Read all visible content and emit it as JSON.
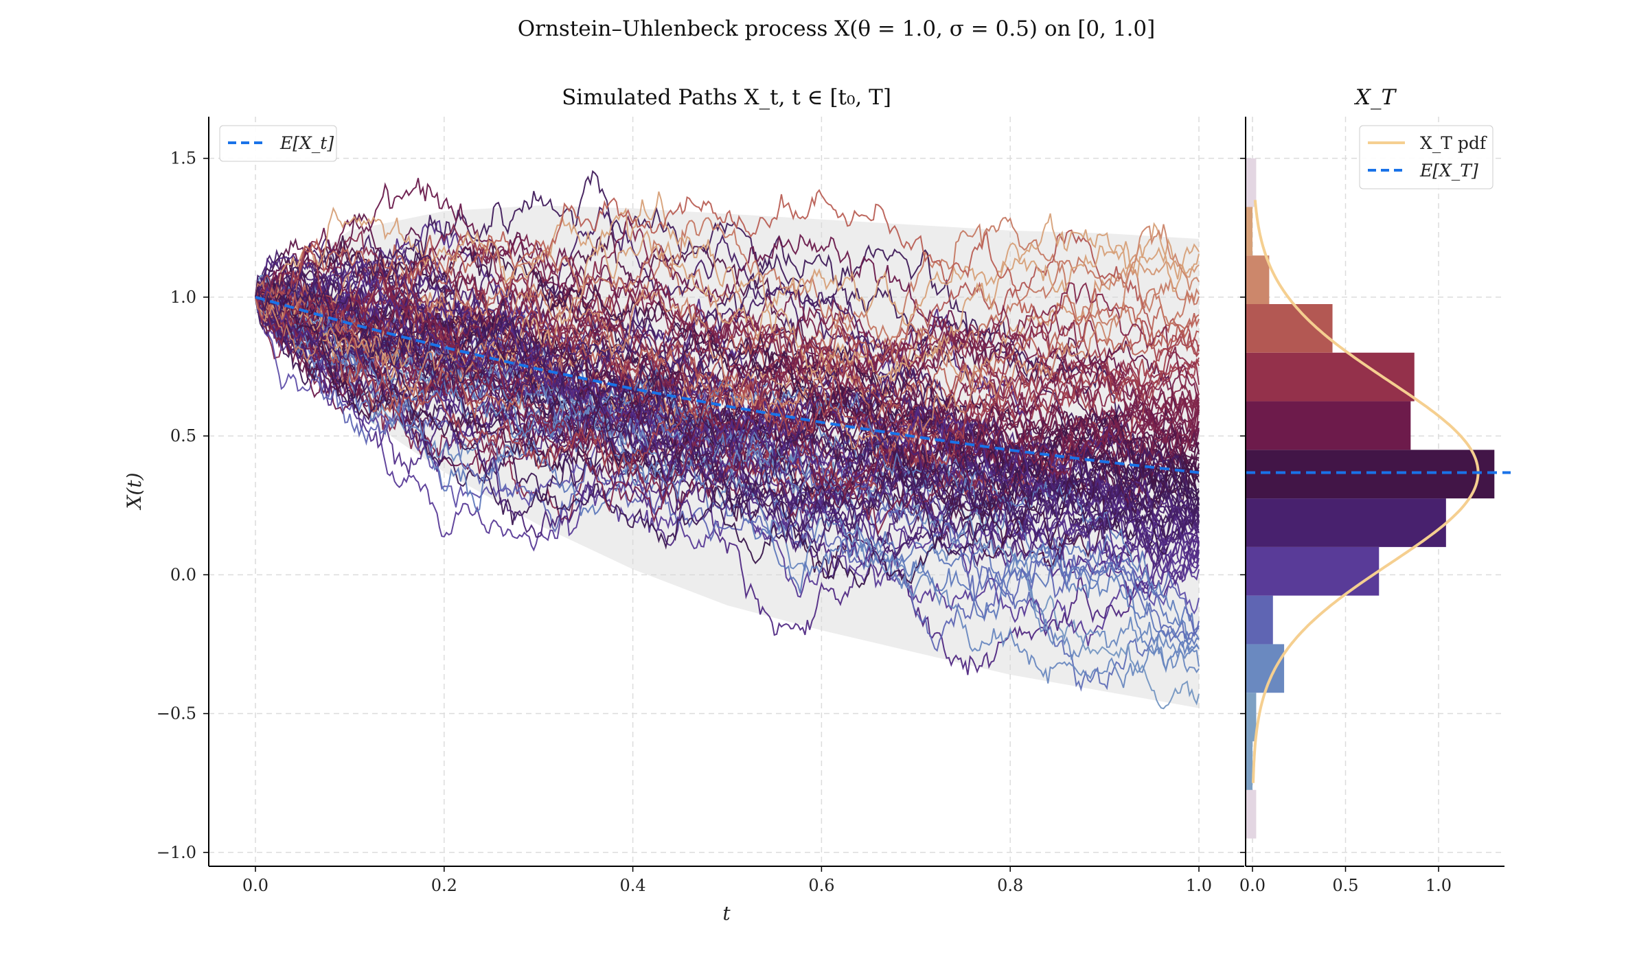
{
  "figure": {
    "title": "Ornstein–Uhlenbeck process X(θ = 1.0, σ = 0.5) on [0, 1.0]"
  },
  "chart_data": [
    {
      "type": "line",
      "title": "Simulated Paths X_t, t ∈ [t₀, T]",
      "xlabel": "t",
      "ylabel": "X(t)",
      "xlim": [
        0.0,
        1.0
      ],
      "ylim": [
        -1.05,
        1.65
      ],
      "xticks": [
        "0.0",
        "0.2",
        "0.4",
        "0.6",
        "0.8",
        "1.0"
      ],
      "yticks": [
        "−1.0",
        "−0.5",
        "0.0",
        "0.5",
        "1.0",
        "1.5"
      ],
      "grid": true,
      "legend": {
        "position": "top-left",
        "entries": [
          "E[X_t]"
        ]
      },
      "process": {
        "theta": 1.0,
        "sigma": 0.5,
        "x0": 1.0,
        "t0": 0.0,
        "T": 1.0
      },
      "series": [
        {
          "name": "E[X_t]",
          "style": "dashed",
          "color": "#1a73e8",
          "x": [
            0.0,
            0.1,
            0.2,
            0.3,
            0.4,
            0.5,
            0.6,
            0.7,
            0.8,
            0.9,
            1.0
          ],
          "values": [
            1.0,
            0.905,
            0.819,
            0.741,
            0.67,
            0.607,
            0.549,
            0.497,
            0.449,
            0.407,
            0.368
          ]
        }
      ],
      "band": {
        "x": [
          0.0,
          0.1,
          0.2,
          0.3,
          0.4,
          0.5,
          0.6,
          0.7,
          0.8,
          0.9,
          1.0
        ],
        "upper": [
          1.0,
          1.24,
          1.31,
          1.33,
          1.32,
          1.3,
          1.28,
          1.26,
          1.24,
          1.23,
          1.21
        ],
        "lower": [
          1.0,
          0.6,
          0.37,
          0.18,
          0.02,
          -0.11,
          -0.2,
          -0.28,
          -0.36,
          -0.42,
          -0.48
        ]
      },
      "simulated_paths": {
        "count": 100,
        "x_end_range": [
          -0.95,
          1.55
        ]
      }
    },
    {
      "type": "bar",
      "title": "X_T",
      "orientation": "horizontal",
      "xticks": [
        "0.0",
        "0.5",
        "1.0"
      ],
      "xlim": [
        0.0,
        1.35
      ],
      "grid": true,
      "legend": {
        "position": "top-right",
        "entries": [
          "X_T pdf",
          "E[X_T]"
        ]
      },
      "histogram": {
        "bin_edges": [
          -0.95,
          -0.775,
          -0.6,
          -0.425,
          -0.25,
          -0.075,
          0.1,
          0.275,
          0.45,
          0.625,
          0.8,
          0.975,
          1.15,
          1.325,
          1.5
        ],
        "density": [
          0.02,
          0.0,
          0.02,
          0.17,
          0.11,
          0.68,
          1.04,
          1.3,
          0.85,
          0.87,
          0.43,
          0.09,
          0.0,
          0.02
        ]
      },
      "series": [
        {
          "name": "X_T pdf",
          "color": "#f5cf90",
          "mean": 0.368,
          "std": 0.329
        },
        {
          "name": "E[X_T]",
          "style": "dashed",
          "color": "#1a73e8",
          "value": 0.368
        }
      ]
    }
  ]
}
